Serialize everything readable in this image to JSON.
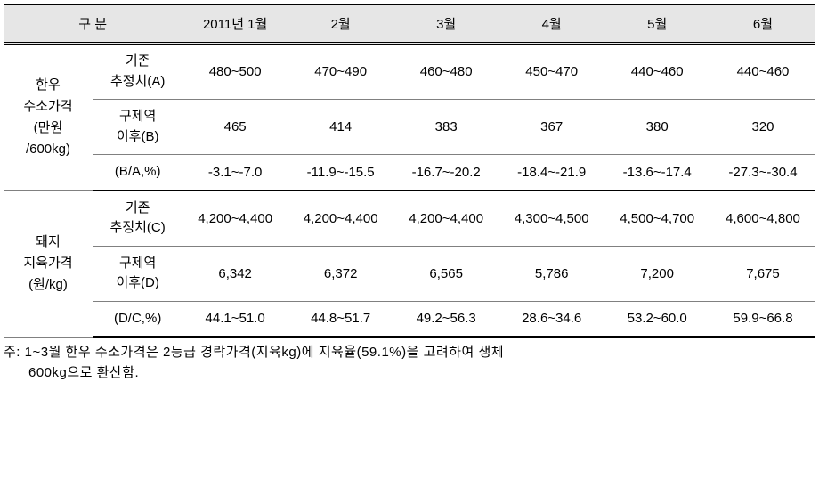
{
  "header": {
    "category": "구 분",
    "months": [
      "2011년 1월",
      "2월",
      "3월",
      "4월",
      "5월",
      "6월"
    ]
  },
  "sections": [
    {
      "category": "한우\n수소가격\n(만원\n/600kg)",
      "rows": [
        {
          "label": "기존\n추정치(A)",
          "values": [
            "480~500",
            "470~490",
            "460~480",
            "450~470",
            "440~460",
            "440~460"
          ]
        },
        {
          "label": "구제역\n이후(B)",
          "values": [
            "465",
            "414",
            "383",
            "367",
            "380",
            "320"
          ]
        },
        {
          "label": "(B/A,%)",
          "values": [
            "-3.1~-7.0",
            "-11.9~-15.5",
            "-16.7~-20.2",
            "-18.4~-21.9",
            "-13.6~-17.4",
            "-27.3~-30.4"
          ]
        }
      ]
    },
    {
      "category": "돼지\n지육가격\n(원/kg)",
      "rows": [
        {
          "label": "기존\n추정치(C)",
          "values": [
            "4,200~4,400",
            "4,200~4,400",
            "4,200~4,400",
            "4,300~4,500",
            "4,500~4,700",
            "4,600~4,800"
          ]
        },
        {
          "label": "구제역\n이후(D)",
          "values": [
            "6,342",
            "6,372",
            "6,565",
            "5,786",
            "7,200",
            "7,675"
          ]
        },
        {
          "label": "(D/C,%)",
          "values": [
            "44.1~51.0",
            "44.8~51.7",
            "49.2~56.3",
            "28.6~34.6",
            "53.2~60.0",
            "59.9~66.8"
          ]
        }
      ]
    }
  ],
  "footnote": {
    "line1": "주: 1~3월  한우  수소가격은  2등급  경락가격(지육kg)에  지육율(59.1%)을  고려하여  생체",
    "line2": "600kg으로 환산함."
  }
}
